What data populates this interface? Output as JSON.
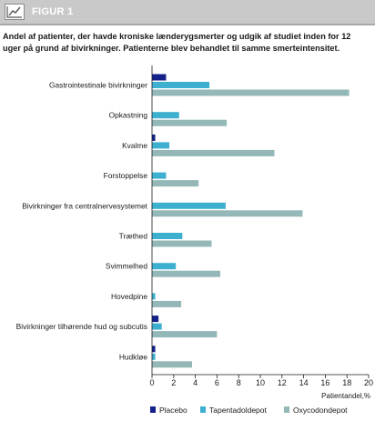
{
  "header": {
    "title": "FIGUR 1",
    "icon": "line-chart-icon"
  },
  "subtitle_parts": {
    "before": "Andel af patienter, der havde kroniske lænderygsmerter og udgik af studiet inden for ",
    "bold": "12 uger",
    "after": " på grund af bivirkninger. Patienterne blev behandlet til samme smerteintensitet."
  },
  "colors": {
    "placebo": "#15218a",
    "tapentadoldepot": "#3eb0cf",
    "oxycodondepot": "#94b8b8",
    "header_bg": "#c9c9c9"
  },
  "chart_data": {
    "type": "bar",
    "orientation": "horizontal",
    "categories": [
      "Gastrointestinale bivirkninger",
      "Opkastning",
      "Kvalme",
      "Forstoppelse",
      "Bivirkninger fra centralnervesystemet",
      "Træthed",
      "Svimmelhed",
      "Hovedpine",
      "Bivirkninger tilhørende hud og subcutis",
      "Hudkløe"
    ],
    "series": [
      {
        "name": "Placebo",
        "values": [
          1.3,
          0,
          0.3,
          0,
          0,
          0,
          0,
          0,
          0.6,
          0.3
        ]
      },
      {
        "name": "Tapentadoldepot",
        "values": [
          5.3,
          2.5,
          1.6,
          1.3,
          6.8,
          2.8,
          2.2,
          0.3,
          0.9,
          0.3
        ]
      },
      {
        "name": "Oxycodondepot",
        "values": [
          18.2,
          6.9,
          11.3,
          4.3,
          13.9,
          5.5,
          6.3,
          2.7,
          6.0,
          3.7
        ]
      }
    ],
    "xlabel": "Patientandel,%",
    "xticks": [
      0,
      2,
      4,
      6,
      8,
      10,
      12,
      14,
      16,
      18,
      20
    ],
    "xlim": [
      0,
      20
    ],
    "grid": false,
    "legend_position": "bottom"
  }
}
